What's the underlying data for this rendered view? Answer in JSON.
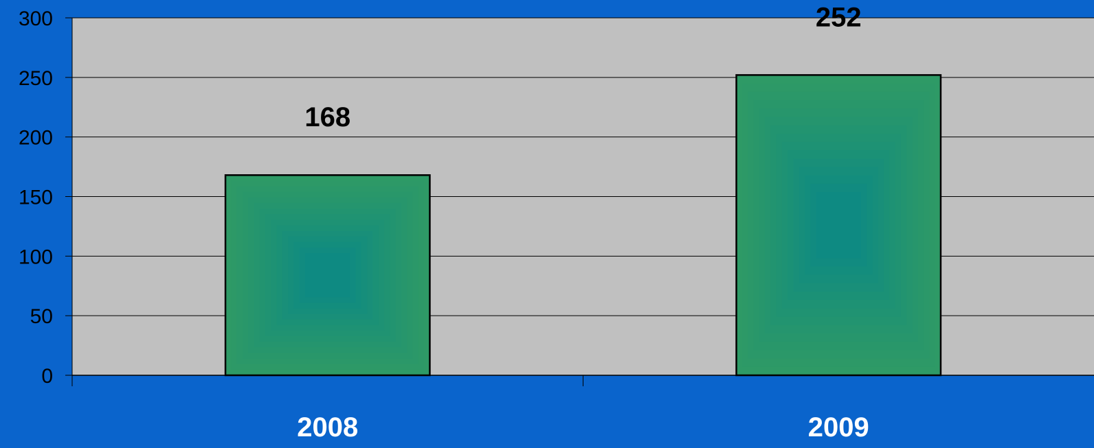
{
  "chart_data": {
    "type": "bar",
    "categories": [
      "2008",
      "2009"
    ],
    "values": [
      168,
      252
    ],
    "value_labels": [
      "168",
      "252"
    ],
    "title": "",
    "xlabel": "",
    "ylabel": "",
    "ylim": [
      0,
      300
    ],
    "yticks": [
      0,
      50,
      100,
      150,
      200,
      250,
      300
    ],
    "ytick_labels": [
      "0",
      "50",
      "100",
      "150",
      "200",
      "250",
      "300"
    ],
    "grid": true,
    "legend": "none"
  },
  "colors": {
    "page_background": "#0A64CC",
    "plot_background": "#C0C0C0",
    "bar_edge": "#2E9A66",
    "bar_center": "#0E8A82",
    "bar_outline": "#000000",
    "category_label": "#FFFFFF",
    "value_label": "#000000"
  }
}
